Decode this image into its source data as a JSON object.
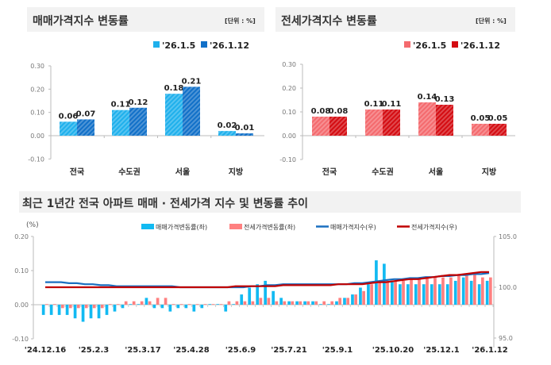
{
  "chart_data": [
    {
      "type": "bar",
      "title": "매매가격지수 변동률",
      "unit_label": "[단위 : %]",
      "categories": [
        "전국",
        "수도권",
        "서울",
        "지방"
      ],
      "series": [
        {
          "name": "'26.1.5",
          "values": [
            0.06,
            0.11,
            0.18,
            0.02
          ],
          "color": "#1fb0ec"
        },
        {
          "name": "'26.1.12",
          "values": [
            0.07,
            0.12,
            0.21,
            0.01
          ],
          "color": "#1170c8"
        }
      ],
      "data_labels": [
        [
          "0.06",
          "0.11",
          "0.18",
          "0.02"
        ],
        [
          "0.07",
          "0.12",
          "0.21",
          "0.01"
        ]
      ],
      "ylim": [
        -0.1,
        0.3
      ],
      "yticks": [
        "0.30",
        "0.20",
        "0.10",
        "0.00",
        "-0.10"
      ],
      "legend": "top-right",
      "grid": false
    },
    {
      "type": "bar",
      "title": "전세가격지수 변동률",
      "unit_label": "[단위 : %]",
      "categories": [
        "전국",
        "수도권",
        "서울",
        "지방"
      ],
      "series": [
        {
          "name": "'26.1.5",
          "values": [
            0.08,
            0.11,
            0.14,
            0.05
          ],
          "color": "#f46a6e"
        },
        {
          "name": "'26.1.12",
          "values": [
            0.08,
            0.11,
            0.13,
            0.05
          ],
          "color": "#d40c12"
        }
      ],
      "data_labels": [
        [
          "0.08",
          "0.11",
          "0.14",
          "0.05"
        ],
        [
          "0.08",
          "0.11",
          "0.13",
          "0.05"
        ]
      ],
      "ylim": [
        -0.1,
        0.3
      ],
      "yticks": [
        "0.30",
        "0.20",
        "0.10",
        "0.00",
        "-0.10"
      ],
      "legend": "top-right",
      "grid": false
    },
    {
      "type": "bar+line",
      "title": "최근 1년간 전국 아파트 매매 · 전세가격 지수 및 변동률 추이",
      "left_unit": "(%)",
      "xtick_labels": [
        "'24.12.16",
        "'25.2.3",
        "'25.3.17",
        "'25.4.28",
        "'25.6.9",
        "'25.7.21",
        "'25.9.1",
        "'25.10.20",
        "'25.12.1",
        "'26.1.12"
      ],
      "yticks_left": [
        "0.20",
        "0.10",
        "0.00",
        "-0.10"
      ],
      "ylim_left": [
        -0.1,
        0.2
      ],
      "yticks_right": [
        "105.0",
        "100.0",
        "95.0"
      ],
      "ylim_right": [
        95.0,
        105.0
      ],
      "legend": "top",
      "series": [
        {
          "name": "매매가격변동률(좌)",
          "type": "bar",
          "axis": "left",
          "color": "#12baf2",
          "values": [
            -0.03,
            -0.03,
            -0.03,
            -0.03,
            -0.04,
            -0.05,
            -0.04,
            -0.04,
            -0.03,
            -0.02,
            -0.01,
            0.0,
            0.0,
            0.02,
            -0.01,
            -0.01,
            -0.02,
            -0.01,
            -0.01,
            -0.02,
            -0.01,
            0.0,
            0.0,
            -0.02,
            0.0,
            0.03,
            0.05,
            0.06,
            0.07,
            0.04,
            0.02,
            0.01,
            0.01,
            0.01,
            0.01,
            0.0,
            0.0,
            0.01,
            0.02,
            0.03,
            0.05,
            0.06,
            0.13,
            0.12,
            0.07,
            0.06,
            0.06,
            0.06,
            0.06,
            0.06,
            0.06,
            0.06,
            0.07,
            0.08,
            0.07,
            0.06,
            0.07
          ]
        },
        {
          "name": "전세가격변동률(좌)",
          "type": "bar",
          "axis": "left",
          "color": "#ff8080",
          "values": [
            0.0,
            0.0,
            -0.01,
            -0.01,
            -0.01,
            -0.01,
            -0.01,
            -0.01,
            0.0,
            0.0,
            0.01,
            0.01,
            0.01,
            0.01,
            0.02,
            0.02,
            0.0,
            0.0,
            0.0,
            0.0,
            0.0,
            0.0,
            0.0,
            0.01,
            0.01,
            0.01,
            0.01,
            0.02,
            0.02,
            0.01,
            0.01,
            0.01,
            0.01,
            0.01,
            0.01,
            0.01,
            0.01,
            0.02,
            0.02,
            0.03,
            0.04,
            0.06,
            0.07,
            0.07,
            0.07,
            0.07,
            0.08,
            0.08,
            0.08,
            0.08,
            0.08,
            0.08,
            0.09,
            0.09,
            0.09,
            0.08,
            0.08
          ]
        },
        {
          "name": "매매가격지수(우)",
          "type": "line",
          "axis": "right",
          "color": "#1a6fc0",
          "values": [
            100.5,
            100.5,
            100.5,
            100.4,
            100.4,
            100.3,
            100.3,
            100.2,
            100.2,
            100.1,
            100.1,
            100.1,
            100.1,
            100.1,
            100.1,
            100.1,
            100.1,
            100.0,
            100.0,
            100.0,
            100.0,
            100.0,
            100.0,
            100.0,
            100.0,
            100.0,
            100.1,
            100.1,
            100.2,
            100.2,
            100.3,
            100.3,
            100.3,
            100.3,
            100.3,
            100.3,
            100.3,
            100.3,
            100.3,
            100.4,
            100.4,
            100.5,
            100.6,
            100.7,
            100.8,
            100.8,
            100.9,
            100.9,
            101.0,
            101.0,
            101.1,
            101.1,
            101.2,
            101.2,
            101.3,
            101.3,
            101.4
          ]
        },
        {
          "name": "전세가격지수(우)",
          "type": "line",
          "axis": "right",
          "color": "#c00000",
          "values": [
            100.0,
            100.0,
            100.0,
            100.0,
            100.0,
            100.0,
            100.0,
            100.0,
            100.0,
            100.0,
            100.0,
            100.0,
            100.0,
            100.0,
            100.0,
            100.0,
            100.0,
            100.0,
            100.0,
            100.0,
            100.0,
            100.0,
            100.0,
            100.0,
            100.1,
            100.1,
            100.1,
            100.1,
            100.1,
            100.1,
            100.2,
            100.2,
            100.2,
            100.2,
            100.2,
            100.2,
            100.2,
            100.3,
            100.3,
            100.3,
            100.3,
            100.4,
            100.5,
            100.5,
            100.6,
            100.7,
            100.8,
            100.8,
            100.9,
            101.0,
            101.1,
            101.2,
            101.2,
            101.3,
            101.4,
            101.5,
            101.5
          ]
        }
      ]
    }
  ]
}
